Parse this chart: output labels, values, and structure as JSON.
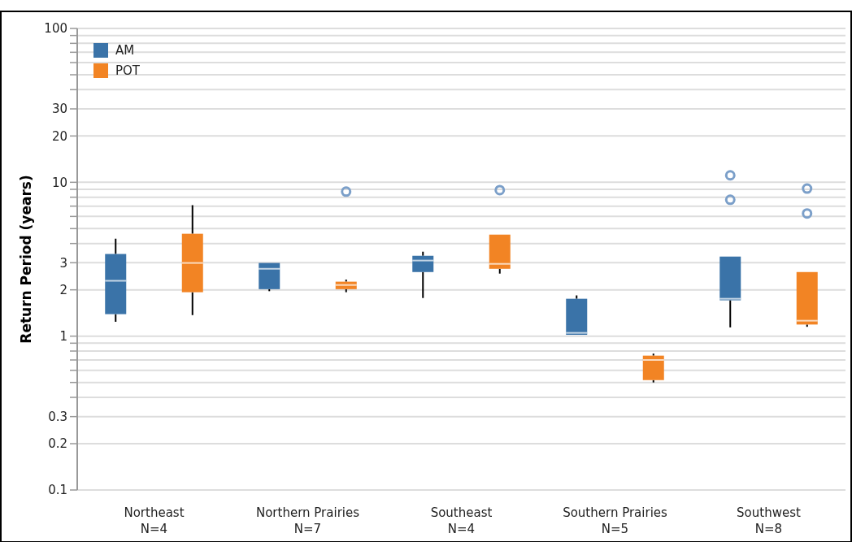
{
  "chart_data": {
    "type": "box",
    "ylabel": "Return Period (years)",
    "log": true,
    "grid": "y",
    "legend": "top left",
    "categories": [
      "Northeast\nN=4",
      "Northern Prairies\nN=7",
      "Southeast\nN=4",
      "Southern Prairies\nN=5",
      "Southwest\nN=8"
    ],
    "ylim": [
      0.1,
      100
    ],
    "yticks": [
      0.1,
      0.2,
      0.3,
      {
        "value": 0.4,
        "label": null
      },
      {
        "value": 0.5,
        "label": null
      },
      {
        "value": 0.6,
        "label": null
      },
      {
        "value": 0.7,
        "label": null
      },
      {
        "value": 0.8,
        "label": null
      },
      {
        "value": 0.9,
        "label": null
      },
      1,
      2,
      3,
      {
        "value": 4,
        "label": null
      },
      {
        "value": 5,
        "label": null
      },
      {
        "value": 6,
        "label": null
      },
      {
        "value": 7,
        "label": null
      },
      {
        "value": 8,
        "label": null
      },
      {
        "value": 9,
        "label": null
      },
      10,
      20,
      30,
      {
        "value": 40,
        "label": null
      },
      {
        "value": 50,
        "label": null
      },
      {
        "value": 60,
        "label": null
      },
      {
        "value": 70,
        "label": null
      },
      {
        "value": 80,
        "label": null
      },
      {
        "value": 90,
        "label": null
      },
      100
    ],
    "series": [
      {
        "name": "AM",
        "color": "#3a73a8",
        "boxes": [
          {
            "low": 1.24,
            "q1": 1.39,
            "median": 2.29,
            "q3": 3.42,
            "high": 4.3
          },
          {
            "low": 1.96,
            "q1": 2.02,
            "median": 2.74,
            "q3": 2.99,
            "high": 2.99
          },
          {
            "low": 1.77,
            "q1": 2.61,
            "median": 3.1,
            "q3": 3.33,
            "high": 3.54
          },
          {
            "low": 1.02,
            "q1": 1.02,
            "median": 1.05,
            "q3": 1.75,
            "high": 1.84
          },
          {
            "low": 1.14,
            "q1": 1.71,
            "median": 1.75,
            "q3": 3.29,
            "high": 3.29,
            "outliers": [
              11.1,
              7.7
            ]
          }
        ]
      },
      {
        "name": "POT",
        "color": "#f28424",
        "boxes": [
          {
            "low": 1.37,
            "q1": 1.93,
            "median": 2.99,
            "q3": 4.63,
            "high": 7.1
          },
          {
            "low": 1.93,
            "q1": 2.02,
            "median": 2.15,
            "q3": 2.26,
            "high": 2.33,
            "outliers": [
              8.7
            ]
          },
          {
            "low": 2.55,
            "q1": 2.74,
            "median": 2.95,
            "q3": 4.57,
            "high": 4.57,
            "outliers": [
              8.9
            ]
          },
          {
            "low": 0.5,
            "q1": 0.518,
            "median": 0.7,
            "q3": 0.747,
            "high": 0.77
          },
          {
            "low": 1.15,
            "q1": 1.19,
            "median": 1.26,
            "q3": 2.61,
            "high": 2.61,
            "outliers": [
              9.1,
              6.27
            ]
          }
        ]
      }
    ]
  }
}
